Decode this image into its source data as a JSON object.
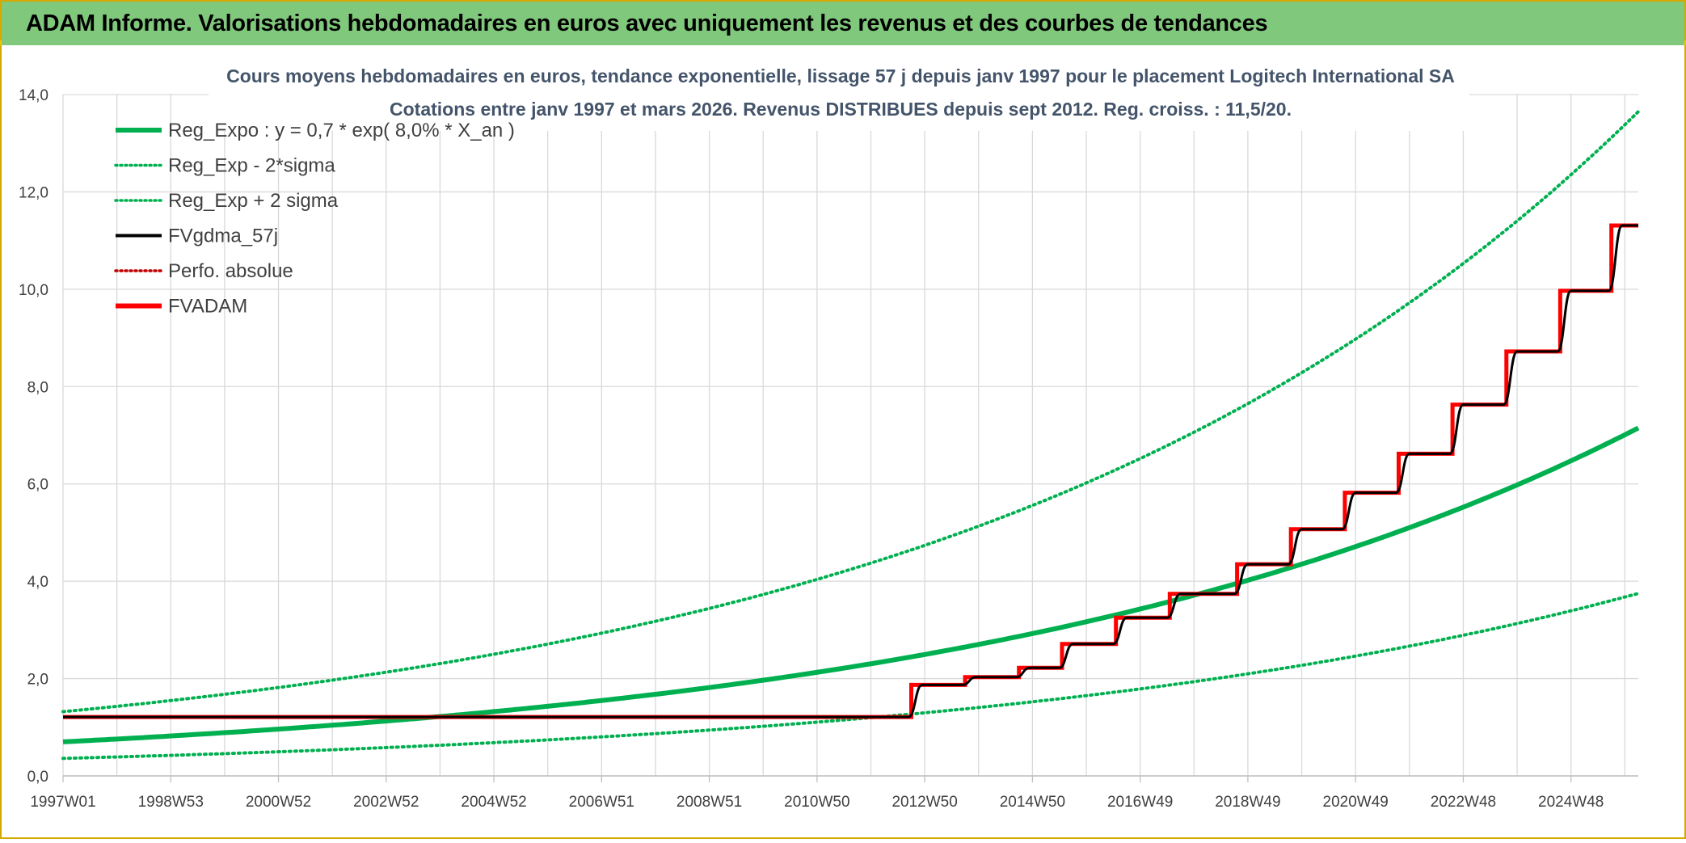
{
  "header": {
    "title": "ADAM Informe. Valorisations hebdomadaires en euros avec uniquement les revenus et des courbes de tendances"
  },
  "colors": {
    "header_bg": "#80c87c",
    "frame": "#d4a800",
    "trend": "#00b050",
    "fvgdma": "#000000",
    "fvadam": "#ff0000",
    "grid": "#d9d9d9"
  },
  "chart_data": {
    "type": "line",
    "title_line1": "Cours moyens hebdomadaires en euros, tendance exponentielle, lissage 57 j depuis janv 1997 pour le placement Logitech International SA",
    "title_line2": "Cotations entre janv 1997 et mars 2026. Revenus DISTRIBUES depuis sept 2012. Reg. croiss. : 11,5/20.",
    "xlabel": "",
    "ylabel": "",
    "ylim": [
      0,
      14
    ],
    "xlim": [
      1997.0,
      2026.25
    ],
    "y_ticks": [
      "0,0",
      "2,0",
      "4,0",
      "6,0",
      "8,0",
      "10,0",
      "12,0",
      "14,0"
    ],
    "x_ticks": [
      {
        "label": "1997W01",
        "year": 1997.0
      },
      {
        "label": "1998W53",
        "year": 1999.0
      },
      {
        "label": "2000W52",
        "year": 2001.0
      },
      {
        "label": "2002W52",
        "year": 2003.0
      },
      {
        "label": "2004W52",
        "year": 2005.0
      },
      {
        "label": "2006W51",
        "year": 2007.0
      },
      {
        "label": "2008W51",
        "year": 2009.0
      },
      {
        "label": "2010W50",
        "year": 2011.0
      },
      {
        "label": "2012W50",
        "year": 2013.0
      },
      {
        "label": "2014W50",
        "year": 2015.0
      },
      {
        "label": "2016W49",
        "year": 2017.0
      },
      {
        "label": "2018W49",
        "year": 2019.0
      },
      {
        "label": "2020W49",
        "year": 2021.0
      },
      {
        "label": "2022W48",
        "year": 2023.0
      },
      {
        "label": "2024W48",
        "year": 2025.0
      }
    ],
    "legend": [
      {
        "name": "Reg_Expo : y = 0,7 * exp( 8,0% *  X_an )",
        "style": "solid-thick",
        "color": "#00b050"
      },
      {
        "name": "Reg_Exp - 2*sigma",
        "style": "dotted",
        "color": "#00b050"
      },
      {
        "name": "Reg_Exp + 2 sigma",
        "style": "dotted",
        "color": "#00b050"
      },
      {
        "name": "FVgdma_57j",
        "style": "solid",
        "color": "#000000"
      },
      {
        "name": "Perfo. absolue",
        "style": "dotted",
        "color": "#c00000"
      },
      {
        "name": "FVADAM",
        "style": "solid-thick",
        "color": "#ff0000"
      }
    ],
    "legend_position": "top-left",
    "grid": true,
    "series": [
      {
        "name": "Reg_Expo",
        "type": "exp",
        "start_value": 0.7,
        "end_value": 7.15
      },
      {
        "name": "Reg_Exp - 2*sigma",
        "type": "exp",
        "start_value": 0.36,
        "end_value": 3.75
      },
      {
        "name": "Reg_Exp + 2 sigma",
        "type": "exp",
        "start_value": 1.32,
        "end_value": 13.65
      },
      {
        "name": "FVADAM",
        "type": "step",
        "values": [
          [
            1997.0,
            1.21
          ],
          [
            2012.75,
            1.21
          ],
          [
            2012.75,
            1.87
          ],
          [
            2013.75,
            1.87
          ],
          [
            2013.75,
            2.03
          ],
          [
            2014.75,
            2.03
          ],
          [
            2014.75,
            2.22
          ],
          [
            2015.55,
            2.22
          ],
          [
            2015.55,
            2.71
          ],
          [
            2016.55,
            2.71
          ],
          [
            2016.55,
            3.25
          ],
          [
            2017.55,
            3.25
          ],
          [
            2017.55,
            3.74
          ],
          [
            2018.8,
            3.74
          ],
          [
            2018.8,
            4.35
          ],
          [
            2019.8,
            4.35
          ],
          [
            2019.8,
            5.07
          ],
          [
            2020.8,
            5.07
          ],
          [
            2020.8,
            5.82
          ],
          [
            2021.8,
            5.82
          ],
          [
            2021.8,
            6.62
          ],
          [
            2022.8,
            6.62
          ],
          [
            2022.8,
            7.63
          ],
          [
            2023.8,
            7.63
          ],
          [
            2023.8,
            8.72
          ],
          [
            2024.8,
            8.72
          ],
          [
            2024.8,
            9.97
          ],
          [
            2025.75,
            9.97
          ],
          [
            2025.75,
            11.31
          ],
          [
            2026.25,
            11.31
          ]
        ]
      },
      {
        "name": "FVgdma_57j",
        "type": "smoothed-step",
        "values": [
          [
            1997.0,
            1.21
          ],
          [
            2012.7,
            1.21
          ],
          [
            2012.95,
            1.87
          ],
          [
            2013.7,
            1.87
          ],
          [
            2013.95,
            2.03
          ],
          [
            2014.7,
            2.03
          ],
          [
            2014.95,
            2.22
          ],
          [
            2015.5,
            2.22
          ],
          [
            2015.75,
            2.71
          ],
          [
            2016.5,
            2.71
          ],
          [
            2016.75,
            3.25
          ],
          [
            2017.5,
            3.25
          ],
          [
            2017.75,
            3.74
          ],
          [
            2018.75,
            3.74
          ],
          [
            2019.0,
            4.35
          ],
          [
            2019.75,
            4.35
          ],
          [
            2020.0,
            5.07
          ],
          [
            2020.75,
            5.07
          ],
          [
            2021.0,
            5.82
          ],
          [
            2021.75,
            5.82
          ],
          [
            2022.0,
            6.62
          ],
          [
            2022.75,
            6.62
          ],
          [
            2023.0,
            7.63
          ],
          [
            2023.75,
            7.63
          ],
          [
            2024.0,
            8.72
          ],
          [
            2024.75,
            8.72
          ],
          [
            2025.0,
            9.97
          ],
          [
            2025.7,
            9.97
          ],
          [
            2025.95,
            11.31
          ],
          [
            2026.25,
            11.31
          ]
        ]
      }
    ]
  }
}
